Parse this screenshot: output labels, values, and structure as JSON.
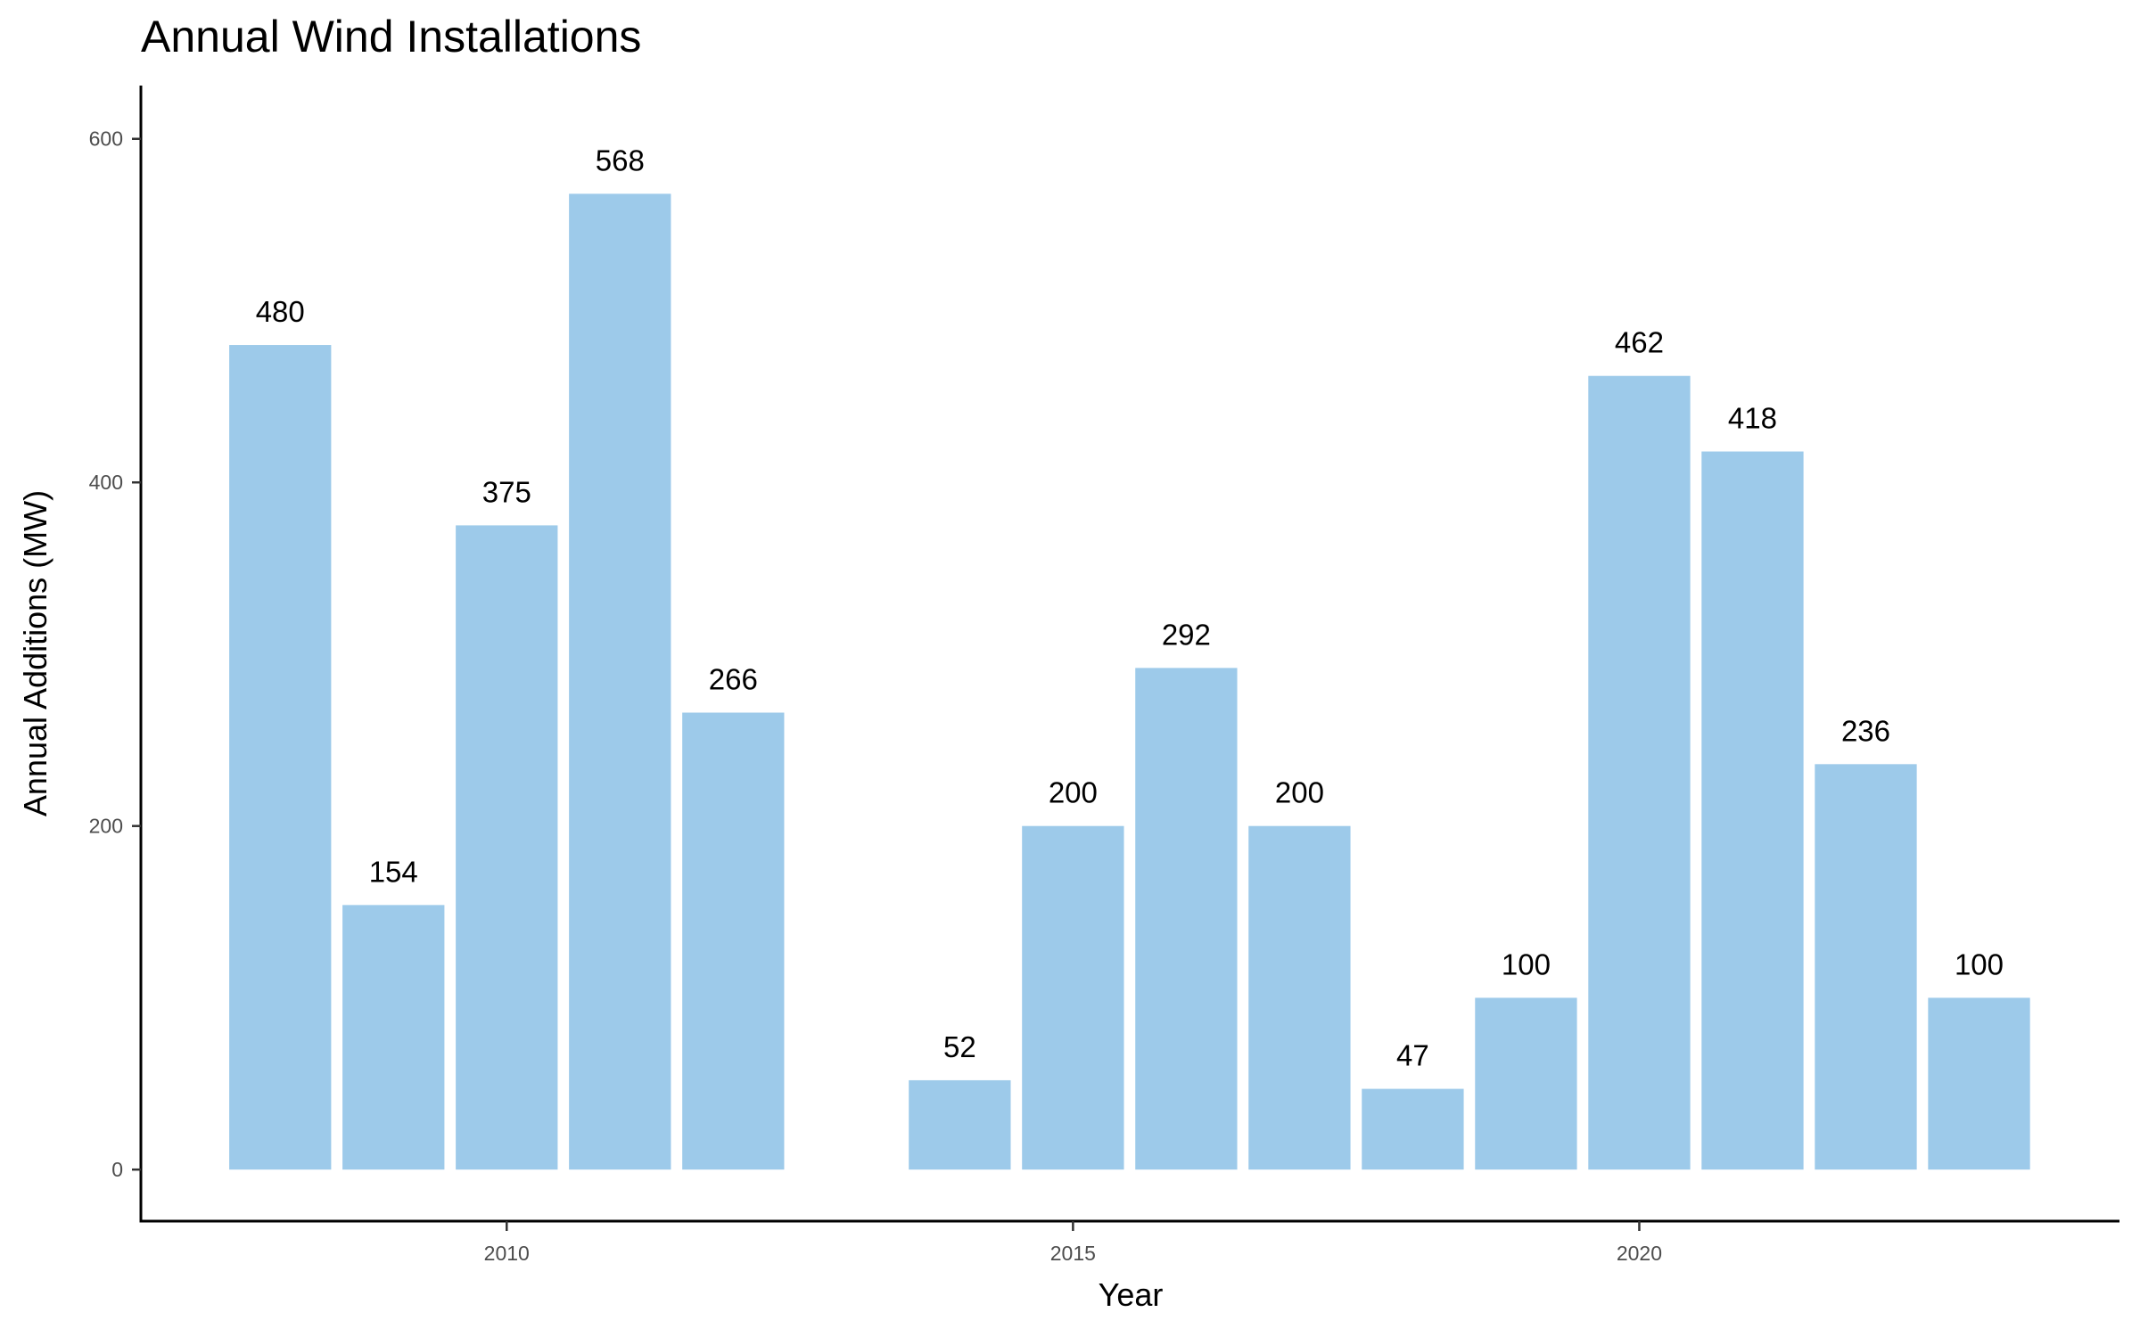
{
  "chart_data": {
    "type": "bar",
    "title": "Annual Wind Installations",
    "xlabel": "Year",
    "ylabel": "Annual Additions (MW)",
    "x": [
      2008,
      2009,
      2010,
      2011,
      2012,
      2014,
      2015,
      2016,
      2017,
      2018,
      2019,
      2020,
      2021,
      2022,
      2023
    ],
    "values": [
      480,
      154,
      375,
      568,
      266,
      52,
      200,
      292,
      200,
      47,
      100,
      462,
      418,
      236,
      100
    ],
    "data_labels": [
      "480",
      "154",
      "375",
      "568",
      "266",
      "52",
      "200",
      "292",
      "200",
      "47",
      "100",
      "462",
      "418",
      "236",
      "100"
    ],
    "xticks": [
      "2010",
      "2015",
      "2020"
    ],
    "yticks": [
      "0",
      "200",
      "400",
      "600"
    ],
    "xlim": [
      2006.77,
      2024.24
    ],
    "ylim": [
      -30,
      631
    ],
    "grid": false,
    "bar_color": "#9DCAEA"
  }
}
